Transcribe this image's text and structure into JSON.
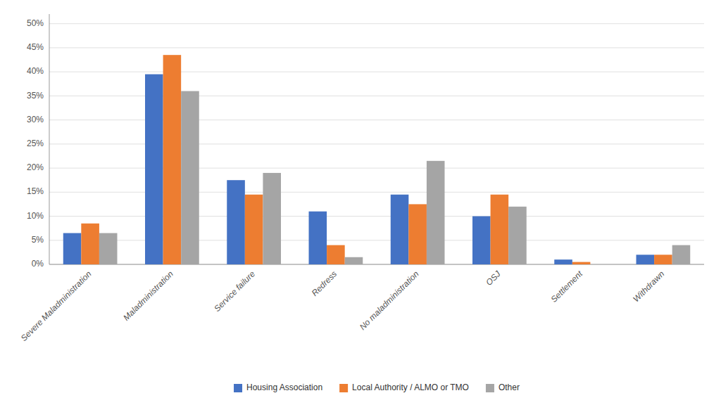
{
  "chart_data": {
    "type": "bar",
    "categories": [
      "Severe Maladministration",
      "Maladministration",
      "Service failure",
      "Redress",
      "No maladministration",
      "OSJ",
      "Settlement",
      "Withdrawn"
    ],
    "series": [
      {
        "name": "Housing Association",
        "color": "#4472C4",
        "values": [
          6.5,
          39.5,
          17.5,
          11.0,
          14.5,
          10.0,
          1.0,
          2.0
        ]
      },
      {
        "name": "Local Authority / ALMO or TMO",
        "color": "#ED7D31",
        "values": [
          8.5,
          43.5,
          14.5,
          4.0,
          12.5,
          14.5,
          0.5,
          2.0
        ]
      },
      {
        "name": "Other",
        "color": "#A5A5A5",
        "values": [
          6.5,
          36.0,
          19.0,
          1.5,
          21.5,
          12.0,
          0.0,
          4.0
        ]
      }
    ],
    "ylim": [
      0,
      52
    ],
    "yticks": [
      {
        "value": 0,
        "label": "0%"
      },
      {
        "value": 5,
        "label": "5%"
      },
      {
        "value": 10,
        "label": "10%"
      },
      {
        "value": 15,
        "label": "15%"
      },
      {
        "value": 20,
        "label": "20%"
      },
      {
        "value": 25,
        "label": "25%"
      },
      {
        "value": 30,
        "label": "30%"
      },
      {
        "value": 35,
        "label": "35%"
      },
      {
        "value": 40,
        "label": "40%"
      },
      {
        "value": 45,
        "label": "45%"
      },
      {
        "value": 50,
        "label": "50%"
      }
    ],
    "grid": true,
    "legend": "bottom"
  }
}
